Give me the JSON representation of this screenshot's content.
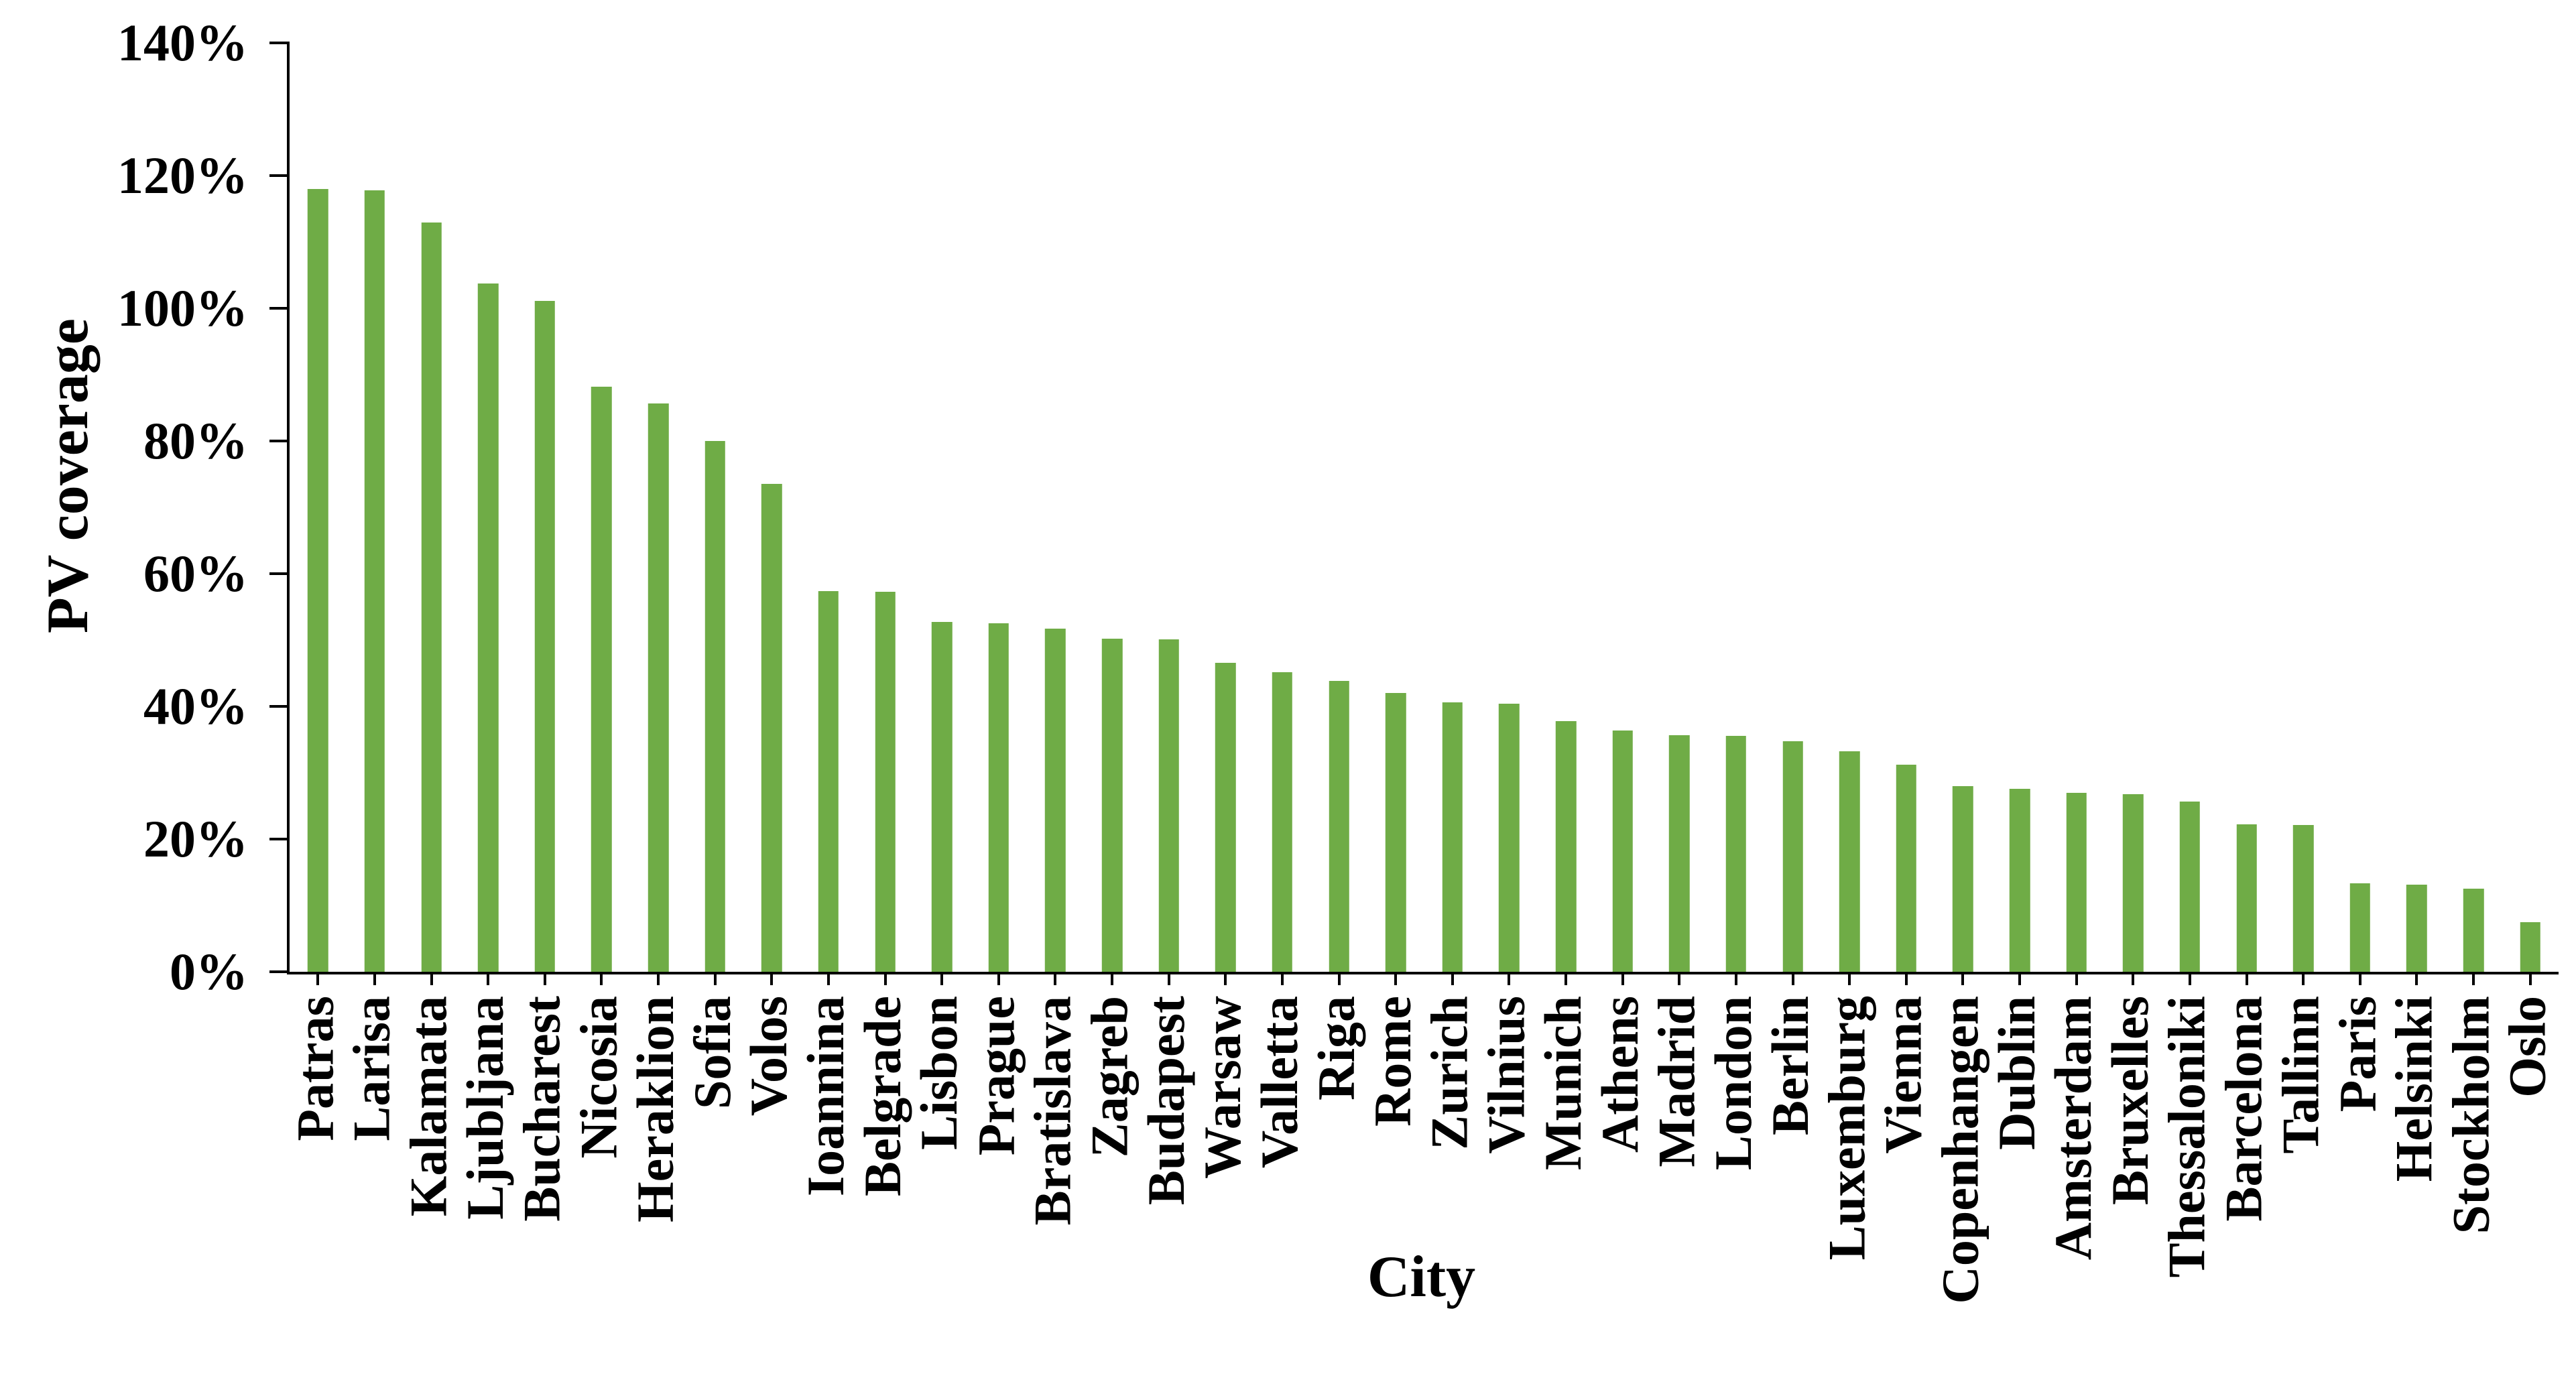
{
  "chart_data": {
    "type": "bar",
    "title": "",
    "xlabel": "City",
    "ylabel": "PV coverage",
    "categories": [
      "Patras",
      "Larisa",
      "Kalamata",
      "Ljubljana",
      "Bucharest",
      "Nicosia",
      "Heraklion",
      "Sofia",
      "Volos",
      "Ioannina",
      "Belgrade",
      "Lisbon",
      "Prague",
      "Bratislava",
      "Zagreb",
      "Budapest",
      "Warsaw",
      "Valletta",
      "Riga",
      "Rome",
      "Zurich",
      "Vilnius",
      "Munich",
      "Athens",
      "Madrid",
      "London",
      "Berlin",
      "Luxemburg",
      "Vienna",
      "Copenhangen",
      "Dublin",
      "Amsterdam",
      "Bruxelles",
      "Thessaloniki",
      "Barcelona",
      "Tallinn",
      "Paris",
      "Helsinki",
      "Stockholm",
      "Oslo"
    ],
    "values": [
      117.8,
      117.6,
      112.8,
      103.6,
      101.0,
      88.1,
      85.5,
      79.9,
      73.4,
      57.3,
      57.2,
      52.7,
      52.5,
      51.6,
      50.1,
      50.0,
      46.5,
      45.1,
      43.8,
      42.0,
      40.5,
      40.3,
      37.7,
      36.3,
      35.6,
      35.5,
      34.7,
      33.2,
      31.2,
      27.9,
      27.5,
      26.9,
      26.7,
      25.6,
      22.2,
      22.1,
      13.3,
      13.1,
      12.5,
      7.5
    ],
    "value_unit": "%",
    "ylim": [
      0,
      140
    ],
    "ytick_step": 20,
    "ytick_labels": [
      "0%",
      "20%",
      "40%",
      "60%",
      "80%",
      "100%",
      "120%",
      "140%"
    ],
    "grid": false,
    "legend": null,
    "bar_color": "#6FAC46",
    "axis_color": "#000000",
    "text_color": "#000000",
    "background_color": "#FFFFFF"
  }
}
